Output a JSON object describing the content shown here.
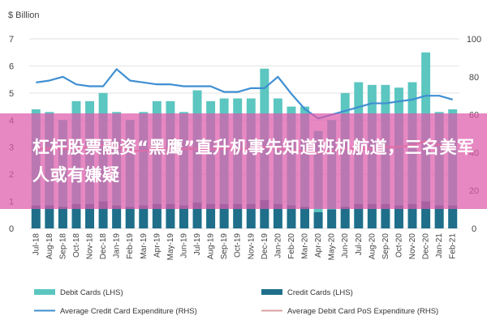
{
  "chart_data": {
    "type": "bar",
    "unit_label": "$ Billion",
    "categories": [
      "Jul-18",
      "Aug-18",
      "Sep-18",
      "Oct-18",
      "Nov-18",
      "Dec-18",
      "Jan-19",
      "Feb-19",
      "Mar-19",
      "Apr-19",
      "May-19",
      "Jun-19",
      "Jul-19",
      "Aug-19",
      "Sep-19",
      "Oct-19",
      "Nov-19",
      "Dec-19",
      "Jan-20",
      "Feb-20",
      "Mar-20",
      "Apr-20",
      "May-20",
      "Jun-20",
      "Jul-20",
      "Aug-20",
      "Sep-20",
      "Oct-20",
      "Nov-20",
      "Dec-20",
      "Jan-21",
      "Feb-21"
    ],
    "y_left": {
      "ticks": [
        0,
        1,
        2,
        3,
        4,
        5,
        6,
        7
      ],
      "ylim": [
        0,
        7
      ]
    },
    "y_right": {
      "ticks": [
        0,
        20,
        40,
        60,
        80,
        100
      ],
      "ylim": [
        0,
        100
      ]
    },
    "series": [
      {
        "name": "Debit Cards (LHS)",
        "type": "bar",
        "axis": "left",
        "color": "#5cc6c0",
        "values": [
          4.4,
          4.3,
          4.0,
          4.7,
          4.7,
          5.0,
          4.3,
          4.0,
          4.3,
          4.7,
          4.7,
          4.3,
          5.1,
          4.7,
          4.8,
          4.8,
          4.8,
          5.9,
          4.8,
          4.5,
          4.5,
          3.6,
          4.0,
          5.0,
          5.4,
          5.3,
          5.3,
          5.2,
          5.4,
          6.5,
          4.3,
          4.4
        ]
      },
      {
        "name": "Credit Cards (LHS)",
        "type": "bar",
        "axis": "left",
        "color": "#1f6f8b",
        "values": [
          0.85,
          0.85,
          0.8,
          0.9,
          0.9,
          1.0,
          0.85,
          0.8,
          0.85,
          0.9,
          0.9,
          0.85,
          0.95,
          0.9,
          0.9,
          0.9,
          0.9,
          1.05,
          0.9,
          0.85,
          0.8,
          0.6,
          0.7,
          0.8,
          0.9,
          0.9,
          0.9,
          0.85,
          0.9,
          1.0,
          0.85,
          0.85
        ]
      },
      {
        "name": "Average Credit Card Expenditure (RHS)",
        "type": "line",
        "axis": "right",
        "color": "#3f8fd2",
        "values": [
          77,
          78,
          80,
          76,
          75,
          75,
          84,
          78,
          77,
          76,
          76,
          75,
          75,
          75,
          72,
          72,
          74,
          74,
          80,
          71,
          63,
          58,
          60,
          62,
          64,
          66,
          66,
          67,
          68,
          70,
          70,
          68
        ]
      },
      {
        "name": "Average Debit Card PoS Expenditure (RHS)",
        "type": "line",
        "axis": "right",
        "color": "#d9a0a0",
        "values": [
          42,
          42,
          42,
          42,
          43,
          44,
          43,
          41,
          41,
          42,
          42,
          42,
          42,
          42,
          42,
          42,
          42,
          43,
          42,
          41,
          41,
          40,
          41,
          42,
          42,
          42,
          43,
          43,
          44,
          46,
          44,
          42
        ]
      }
    ],
    "legend": "bottom",
    "grid": true
  },
  "overlay": {
    "text": "杠杆股票融资“黑鹰”直升机事先知道班机航道，三名美军人或有嫌疑"
  }
}
